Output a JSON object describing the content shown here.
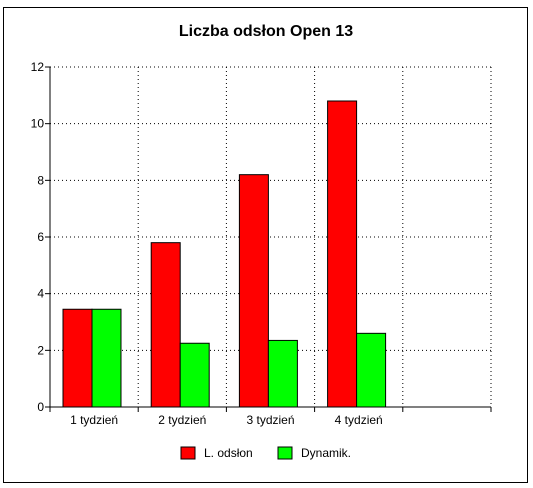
{
  "chart_data": {
    "type": "bar",
    "title": "Liczba odsłon Open 13",
    "xlabel": "",
    "ylabel": "",
    "categories": [
      "1 tydzień",
      "2 tydzień",
      "3 tydzień",
      "4 tydzień",
      ""
    ],
    "series": [
      {
        "name": "L. odsłon",
        "color": "#ff0000",
        "values": [
          3.45,
          5.8,
          8.2,
          10.8,
          null
        ]
      },
      {
        "name": "Dynamik.",
        "color": "#00ff00",
        "values": [
          3.45,
          2.25,
          2.35,
          2.6,
          null
        ]
      }
    ],
    "ylim": [
      0,
      12
    ],
    "yticks": [
      0,
      2,
      4,
      6,
      8,
      10,
      12
    ],
    "grid": true,
    "legend": "bottom"
  }
}
